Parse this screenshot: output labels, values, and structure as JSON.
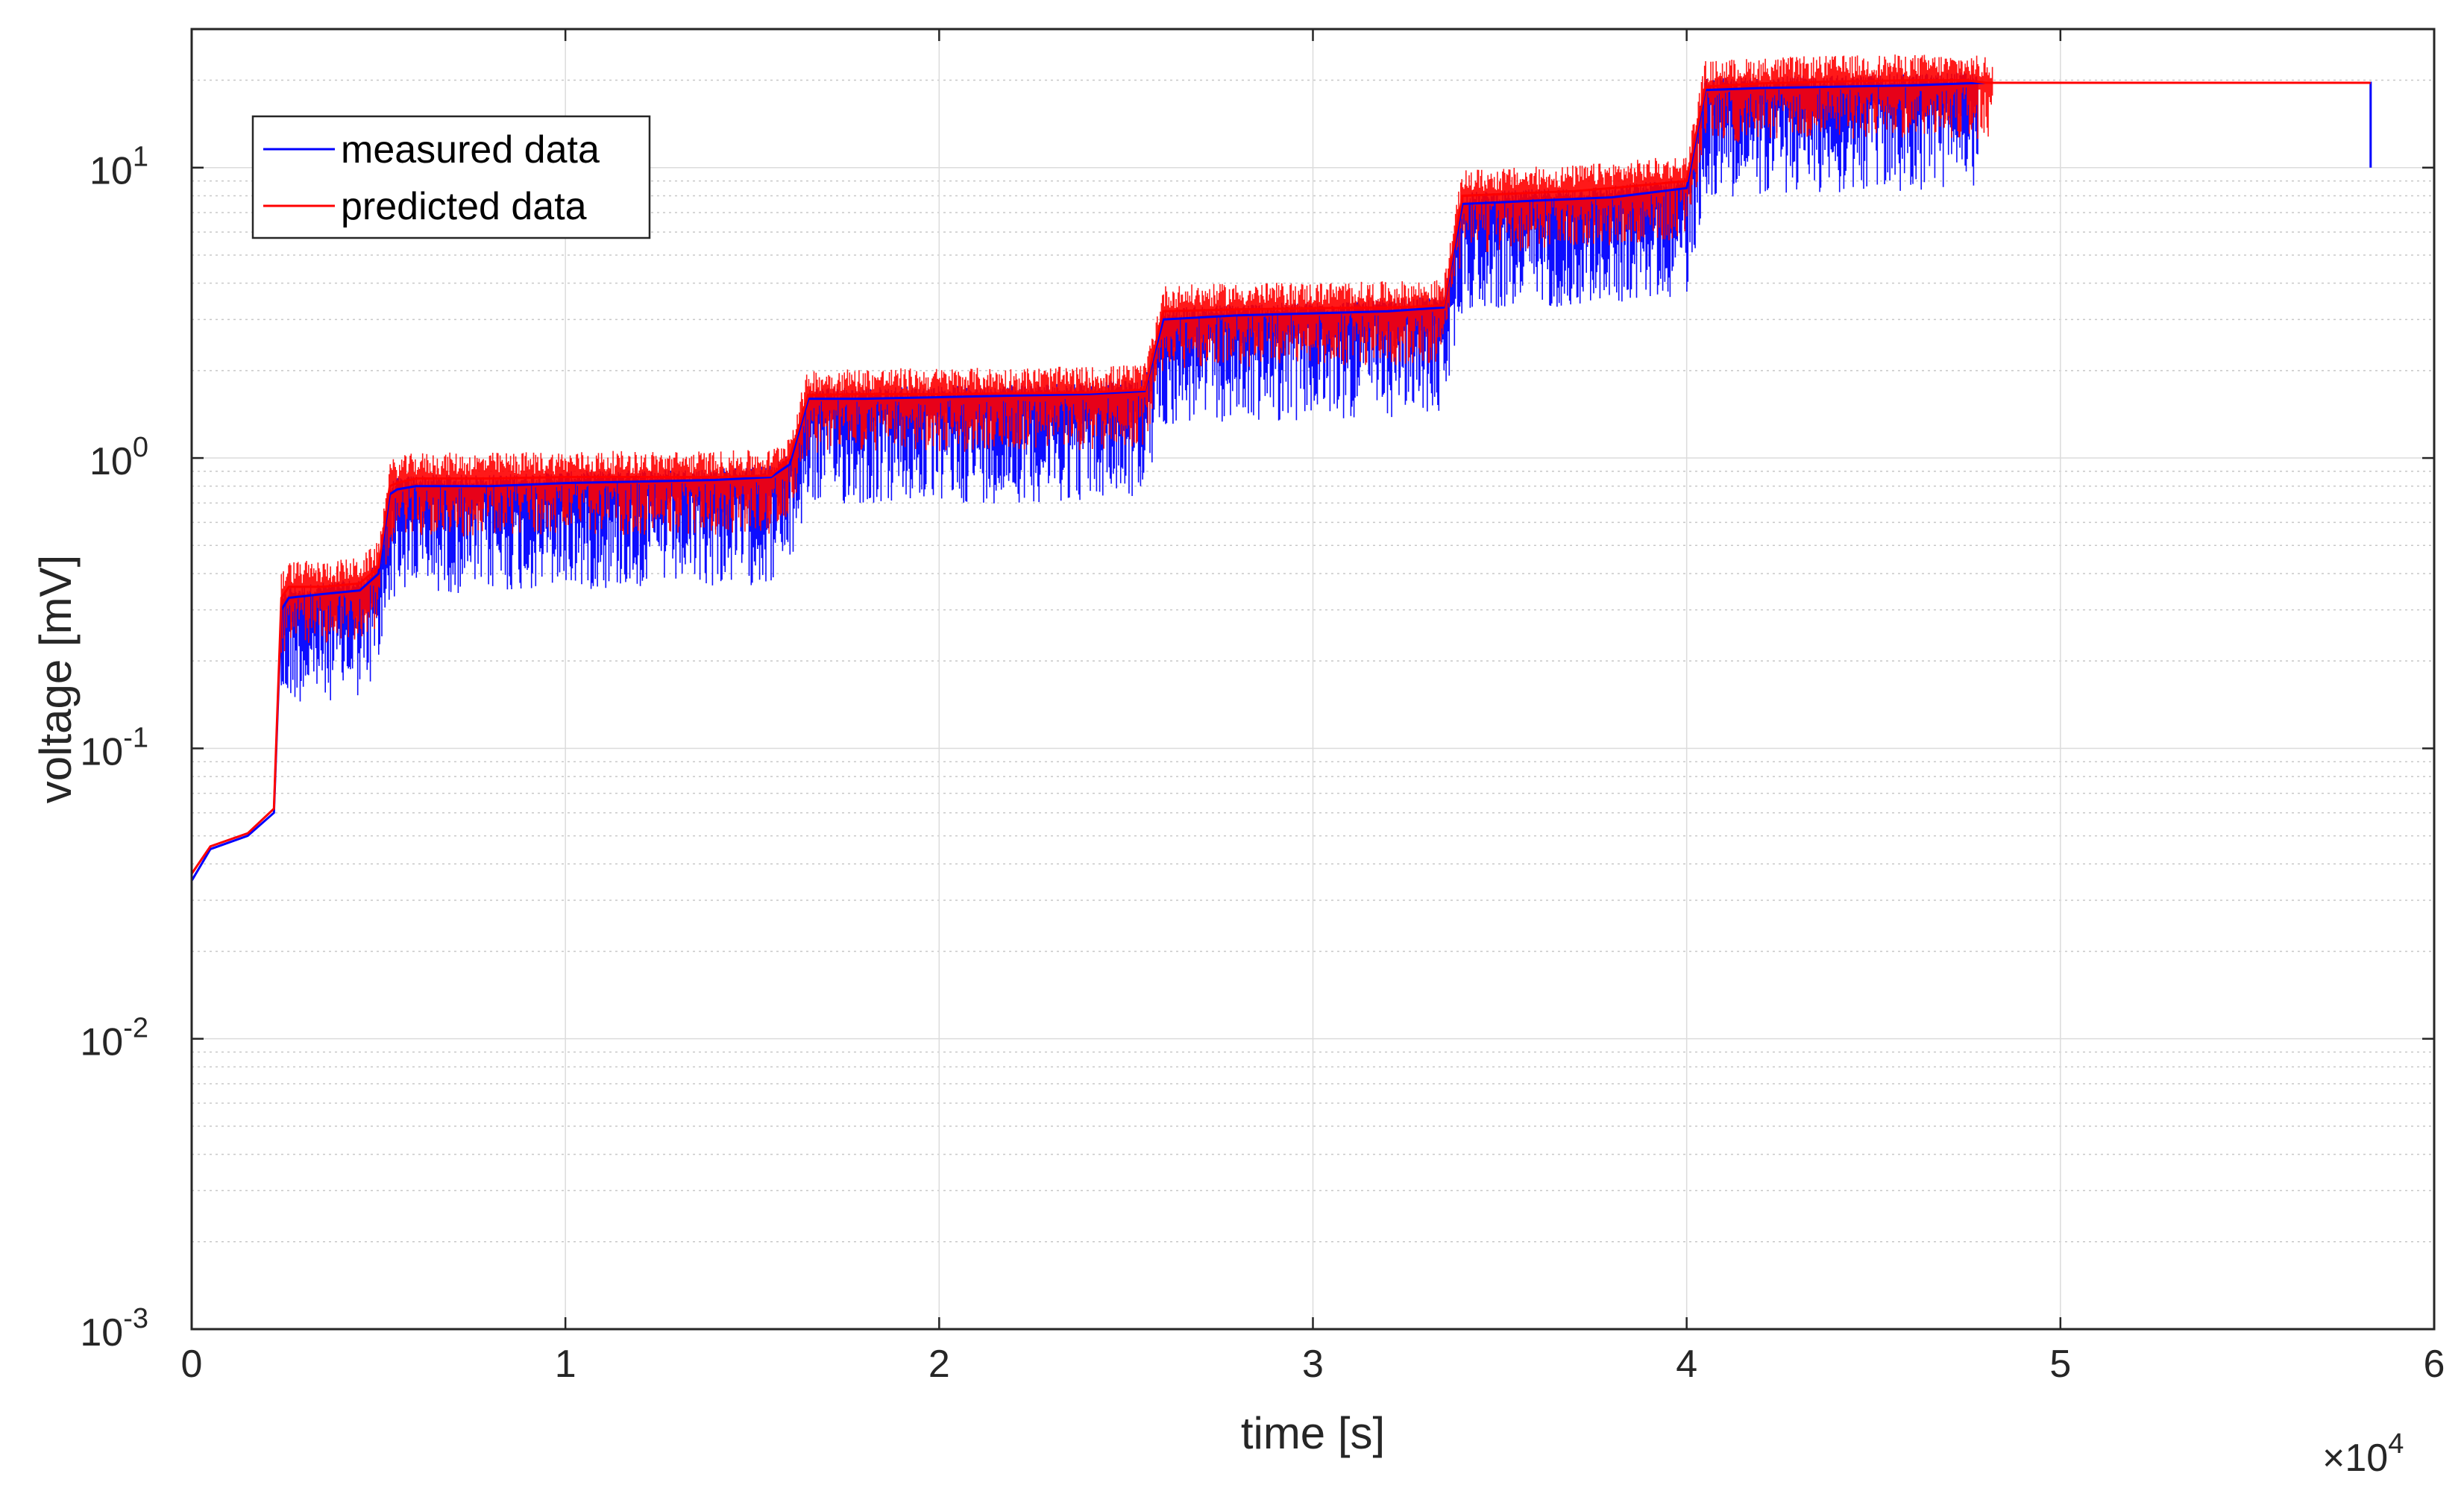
{
  "chart_data": {
    "type": "line",
    "xlabel": "time [s]",
    "ylabel": "voltage [mV]",
    "x_multiplier": "×10",
    "x_multiplier_exp": "4",
    "xlim": [
      0,
      60000
    ],
    "ylim": [
      0.001,
      30
    ],
    "y_scale": "log",
    "grid": true,
    "legend_position": "top-left",
    "x_ticks": [
      {
        "value": 0,
        "label": "0"
      },
      {
        "value": 10000,
        "label": "1"
      },
      {
        "value": 20000,
        "label": "2"
      },
      {
        "value": 30000,
        "label": "3"
      },
      {
        "value": 40000,
        "label": "4"
      },
      {
        "value": 50000,
        "label": "5"
      },
      {
        "value": 60000,
        "label": "6"
      }
    ],
    "y_ticks": [
      {
        "value": 0.001,
        "base": "10",
        "exp": "-3"
      },
      {
        "value": 0.01,
        "base": "10",
        "exp": "-2"
      },
      {
        "value": 0.1,
        "base": "10",
        "exp": "-1"
      },
      {
        "value": 1,
        "base": "10",
        "exp": "0"
      },
      {
        "value": 10,
        "base": "10",
        "exp": "1"
      }
    ],
    "series": [
      {
        "name": "measured data",
        "color": "#0000ff",
        "x": [
          0,
          500,
          1500,
          2200,
          2400,
          2600,
          3500,
          4500,
          5000,
          5300,
          5500,
          6000,
          8000,
          10000,
          12000,
          14000,
          15500,
          16000,
          16500,
          18000,
          20000,
          22000,
          24000,
          25500,
          26000,
          28000,
          30000,
          32000,
          33500,
          34000,
          35000,
          36000,
          38000,
          40000,
          40500,
          42000,
          44000,
          46000,
          47500,
          48000,
          58300,
          58300
        ],
        "y": [
          0.035,
          0.045,
          0.05,
          0.06,
          0.3,
          0.33,
          0.34,
          0.35,
          0.4,
          0.75,
          0.78,
          0.8,
          0.8,
          0.82,
          0.83,
          0.84,
          0.86,
          0.95,
          1.6,
          1.6,
          1.62,
          1.64,
          1.66,
          1.7,
          3.0,
          3.1,
          3.15,
          3.2,
          3.3,
          7.5,
          7.6,
          7.7,
          7.9,
          8.5,
          18.5,
          18.8,
          19.0,
          19.2,
          19.5,
          19.6,
          19.6,
          10.0
        ]
      },
      {
        "name": "predicted data",
        "color": "#ff0000",
        "x": [
          0,
          500,
          1500,
          2200,
          2400,
          2600,
          3500,
          4500,
          5000,
          5300,
          5500,
          6000,
          8000,
          10000,
          12000,
          14000,
          15500,
          16000,
          16500,
          18000,
          20000,
          22000,
          24000,
          25500,
          26000,
          28000,
          30000,
          32000,
          33500,
          34000,
          35000,
          36000,
          37000,
          38000,
          40000,
          40500,
          42000,
          44000,
          46000,
          47500,
          48000,
          58300
        ],
        "y": [
          0.037,
          0.046,
          0.051,
          0.062,
          0.33,
          0.36,
          0.36,
          0.37,
          0.42,
          0.8,
          0.82,
          0.85,
          0.85,
          0.86,
          0.86,
          0.86,
          0.87,
          1.0,
          1.65,
          1.66,
          1.66,
          1.67,
          1.68,
          1.72,
          3.2,
          3.25,
          3.28,
          3.3,
          3.35,
          8.0,
          8.1,
          8.2,
          8.3,
          8.5,
          9.0,
          19.0,
          19.5,
          19.8,
          20.0,
          20.0,
          19.6,
          19.6
        ]
      }
    ]
  }
}
